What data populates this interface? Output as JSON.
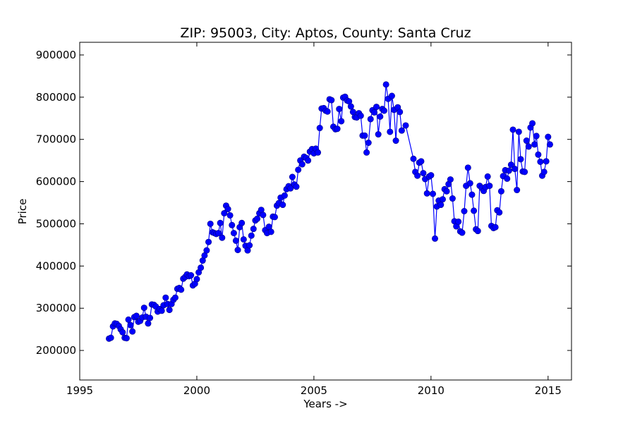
{
  "chart_data": {
    "type": "line",
    "title": "ZIP: 95003, City: Aptos, County: Santa Cruz",
    "xlabel": "Years ->",
    "ylabel": "Price",
    "xlim": [
      1995,
      2016
    ],
    "ylim": [
      130000,
      930000
    ],
    "x_ticks": [
      1995,
      2000,
      2005,
      2010,
      2015
    ],
    "y_ticks": [
      200000,
      300000,
      400000,
      500000,
      600000,
      700000,
      800000,
      900000
    ],
    "grid": false,
    "legend": "none",
    "series": [
      {
        "color": "#0000ff",
        "marker": "circle",
        "points": [
          [
            1996.25,
            228000
          ],
          [
            1996.33,
            230000
          ],
          [
            1996.42,
            257000
          ],
          [
            1996.5,
            264000
          ],
          [
            1996.58,
            263000
          ],
          [
            1996.67,
            258000
          ],
          [
            1996.75,
            250000
          ],
          [
            1996.83,
            243000
          ],
          [
            1996.92,
            230000
          ],
          [
            1997.0,
            229000
          ],
          [
            1997.08,
            273000
          ],
          [
            1997.17,
            260000
          ],
          [
            1997.25,
            245000
          ],
          [
            1997.33,
            279000
          ],
          [
            1997.42,
            282000
          ],
          [
            1997.5,
            268000
          ],
          [
            1997.58,
            270000
          ],
          [
            1997.67,
            278000
          ],
          [
            1997.75,
            301000
          ],
          [
            1997.83,
            280000
          ],
          [
            1997.92,
            264000
          ],
          [
            1998.0,
            277000
          ],
          [
            1998.08,
            309000
          ],
          [
            1998.17,
            308000
          ],
          [
            1998.25,
            304000
          ],
          [
            1998.33,
            292000
          ],
          [
            1998.42,
            298000
          ],
          [
            1998.5,
            294000
          ],
          [
            1998.58,
            307000
          ],
          [
            1998.67,
            325000
          ],
          [
            1998.75,
            310000
          ],
          [
            1998.83,
            296000
          ],
          [
            1998.92,
            310000
          ],
          [
            1999.0,
            320000
          ],
          [
            1999.08,
            325000
          ],
          [
            1999.17,
            346000
          ],
          [
            1999.25,
            348000
          ],
          [
            1999.33,
            344000
          ],
          [
            1999.42,
            370000
          ],
          [
            1999.5,
            374000
          ],
          [
            1999.58,
            380000
          ],
          [
            1999.67,
            376000
          ],
          [
            1999.75,
            378000
          ],
          [
            1999.83,
            354000
          ],
          [
            1999.92,
            358000
          ],
          [
            2000.0,
            369000
          ],
          [
            2000.08,
            385000
          ],
          [
            2000.17,
            396000
          ],
          [
            2000.25,
            413000
          ],
          [
            2000.33,
            425000
          ],
          [
            2000.42,
            437000
          ],
          [
            2000.5,
            457000
          ],
          [
            2000.58,
            500000
          ],
          [
            2000.67,
            480000
          ],
          [
            2000.75,
            478000
          ],
          [
            2000.83,
            476000
          ],
          [
            2000.92,
            478000
          ],
          [
            2001.0,
            502000
          ],
          [
            2001.08,
            467000
          ],
          [
            2001.17,
            525000
          ],
          [
            2001.25,
            543000
          ],
          [
            2001.33,
            535000
          ],
          [
            2001.42,
            520000
          ],
          [
            2001.5,
            497000
          ],
          [
            2001.58,
            478000
          ],
          [
            2001.67,
            460000
          ],
          [
            2001.75,
            438000
          ],
          [
            2001.83,
            492000
          ],
          [
            2001.92,
            502000
          ],
          [
            2002.0,
            463000
          ],
          [
            2002.08,
            448000
          ],
          [
            2002.17,
            437000
          ],
          [
            2002.25,
            449000
          ],
          [
            2002.33,
            472000
          ],
          [
            2002.42,
            488000
          ],
          [
            2002.5,
            508000
          ],
          [
            2002.58,
            512000
          ],
          [
            2002.67,
            525000
          ],
          [
            2002.75,
            533000
          ],
          [
            2002.83,
            521000
          ],
          [
            2002.92,
            485000
          ],
          [
            2003.0,
            478000
          ],
          [
            2003.08,
            493000
          ],
          [
            2003.17,
            481000
          ],
          [
            2003.25,
            517000
          ],
          [
            2003.33,
            516000
          ],
          [
            2003.42,
            543000
          ],
          [
            2003.5,
            549000
          ],
          [
            2003.58,
            562000
          ],
          [
            2003.67,
            545000
          ],
          [
            2003.75,
            567000
          ],
          [
            2003.83,
            582000
          ],
          [
            2003.92,
            589000
          ],
          [
            2004.0,
            584000
          ],
          [
            2004.08,
            611000
          ],
          [
            2004.17,
            593000
          ],
          [
            2004.25,
            588000
          ],
          [
            2004.33,
            628000
          ],
          [
            2004.42,
            650000
          ],
          [
            2004.5,
            641000
          ],
          [
            2004.58,
            659000
          ],
          [
            2004.67,
            656000
          ],
          [
            2004.75,
            650000
          ],
          [
            2004.83,
            671000
          ],
          [
            2004.92,
            677000
          ],
          [
            2005.0,
            667000
          ],
          [
            2005.08,
            678000
          ],
          [
            2005.17,
            669000
          ],
          [
            2005.25,
            727000
          ],
          [
            2005.33,
            773000
          ],
          [
            2005.42,
            774000
          ],
          [
            2005.5,
            768000
          ],
          [
            2005.58,
            766000
          ],
          [
            2005.67,
            795000
          ],
          [
            2005.75,
            793000
          ],
          [
            2005.83,
            730000
          ],
          [
            2005.92,
            724000
          ],
          [
            2006.0,
            725000
          ],
          [
            2006.08,
            772000
          ],
          [
            2006.17,
            743000
          ],
          [
            2006.25,
            799000
          ],
          [
            2006.33,
            801000
          ],
          [
            2006.42,
            792000
          ],
          [
            2006.5,
            790000
          ],
          [
            2006.58,
            778000
          ],
          [
            2006.67,
            765000
          ],
          [
            2006.75,
            753000
          ],
          [
            2006.83,
            752000
          ],
          [
            2006.92,
            762000
          ],
          [
            2007.0,
            756000
          ],
          [
            2007.08,
            709000
          ],
          [
            2007.17,
            709000
          ],
          [
            2007.25,
            669000
          ],
          [
            2007.33,
            692000
          ],
          [
            2007.42,
            748000
          ],
          [
            2007.5,
            769000
          ],
          [
            2007.58,
            764000
          ],
          [
            2007.67,
            777000
          ],
          [
            2007.75,
            712000
          ],
          [
            2007.83,
            754000
          ],
          [
            2007.92,
            772000
          ],
          [
            2008.0,
            768000
          ],
          [
            2008.08,
            830000
          ],
          [
            2008.17,
            796000
          ],
          [
            2008.25,
            718000
          ],
          [
            2008.33,
            803000
          ],
          [
            2008.42,
            770000
          ],
          [
            2008.5,
            697000
          ],
          [
            2008.58,
            776000
          ],
          [
            2008.67,
            765000
          ],
          [
            2008.75,
            721000
          ],
          [
            2008.92,
            733000
          ],
          [
            2009.25,
            654000
          ],
          [
            2009.33,
            623000
          ],
          [
            2009.42,
            614000
          ],
          [
            2009.5,
            645000
          ],
          [
            2009.58,
            648000
          ],
          [
            2009.67,
            620000
          ],
          [
            2009.75,
            606000
          ],
          [
            2009.83,
            572000
          ],
          [
            2009.92,
            612000
          ],
          [
            2010.0,
            615000
          ],
          [
            2010.08,
            571000
          ],
          [
            2010.17,
            465000
          ],
          [
            2010.25,
            541000
          ],
          [
            2010.33,
            555000
          ],
          [
            2010.42,
            545000
          ],
          [
            2010.5,
            558000
          ],
          [
            2010.58,
            582000
          ],
          [
            2010.67,
            577000
          ],
          [
            2010.75,
            594000
          ],
          [
            2010.83,
            605000
          ],
          [
            2010.92,
            560000
          ],
          [
            2011.0,
            506000
          ],
          [
            2011.08,
            494000
          ],
          [
            2011.17,
            505000
          ],
          [
            2011.25,
            482000
          ],
          [
            2011.33,
            479000
          ],
          [
            2011.42,
            530000
          ],
          [
            2011.5,
            590000
          ],
          [
            2011.58,
            633000
          ],
          [
            2011.67,
            596000
          ],
          [
            2011.75,
            569000
          ],
          [
            2011.83,
            531000
          ],
          [
            2011.92,
            487000
          ],
          [
            2012.0,
            483000
          ],
          [
            2012.08,
            590000
          ],
          [
            2012.17,
            585000
          ],
          [
            2012.25,
            578000
          ],
          [
            2012.33,
            587000
          ],
          [
            2012.42,
            612000
          ],
          [
            2012.5,
            590000
          ],
          [
            2012.58,
            495000
          ],
          [
            2012.67,
            490000
          ],
          [
            2012.75,
            492000
          ],
          [
            2012.83,
            532000
          ],
          [
            2012.92,
            527000
          ],
          [
            2013.0,
            577000
          ],
          [
            2013.08,
            613000
          ],
          [
            2013.17,
            627000
          ],
          [
            2013.25,
            607000
          ],
          [
            2013.33,
            626000
          ],
          [
            2013.42,
            640000
          ],
          [
            2013.5,
            723000
          ],
          [
            2013.58,
            630000
          ],
          [
            2013.67,
            580000
          ],
          [
            2013.75,
            718000
          ],
          [
            2013.83,
            653000
          ],
          [
            2013.92,
            624000
          ],
          [
            2014.0,
            623000
          ],
          [
            2014.08,
            697000
          ],
          [
            2014.17,
            683000
          ],
          [
            2014.25,
            728000
          ],
          [
            2014.33,
            738000
          ],
          [
            2014.42,
            688000
          ],
          [
            2014.5,
            708000
          ],
          [
            2014.58,
            664000
          ],
          [
            2014.67,
            647000
          ],
          [
            2014.75,
            614000
          ],
          [
            2014.83,
            623000
          ],
          [
            2014.92,
            648000
          ],
          [
            2015.0,
            706000
          ],
          [
            2015.08,
            688000
          ]
        ]
      }
    ]
  }
}
